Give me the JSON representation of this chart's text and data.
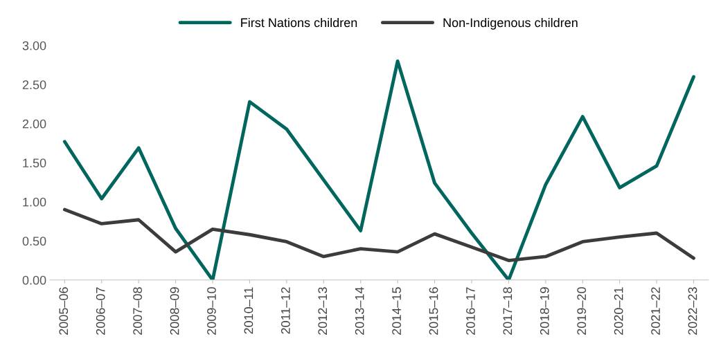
{
  "chart_data": {
    "type": "line",
    "categories": [
      "2005–06",
      "2006–07",
      "2007–08",
      "2008–09",
      "2009–10",
      "2010–11",
      "2011–12",
      "2012–13",
      "2013–14",
      "2014–15",
      "2015–16",
      "2016–17",
      "2017–18",
      "2018–19",
      "2019–20",
      "2020–21",
      "2021–22",
      "2022–23"
    ],
    "series": [
      {
        "name": "First Nations children",
        "color": "#00665e",
        "values": [
          1.77,
          1.04,
          1.69,
          0.66,
          0.0,
          2.28,
          1.93,
          1.28,
          0.63,
          2.8,
          1.24,
          0.6,
          0.0,
          1.22,
          2.09,
          1.18,
          1.46,
          2.6
        ]
      },
      {
        "name": "Non-Indigenous children",
        "color": "#3c3c3c",
        "values": [
          0.9,
          0.72,
          0.77,
          0.36,
          0.65,
          0.58,
          0.49,
          0.3,
          0.4,
          0.36,
          0.59,
          0.42,
          0.25,
          0.3,
          0.49,
          0.55,
          0.6,
          0.28
        ]
      }
    ],
    "ylim": [
      0,
      3.0
    ],
    "yticks": [
      {
        "value": 0,
        "label": "0.00"
      },
      {
        "value": 0.5,
        "label": "0.50"
      },
      {
        "value": 1.0,
        "label": "1.00"
      },
      {
        "value": 1.5,
        "label": "1.50"
      },
      {
        "value": 2.0,
        "label": "2.00"
      },
      {
        "value": 2.5,
        "label": "2.50"
      },
      {
        "value": 3.0,
        "label": "3.00"
      }
    ],
    "grid": false,
    "legend": "top",
    "marker": "none",
    "line_style": "solid"
  }
}
